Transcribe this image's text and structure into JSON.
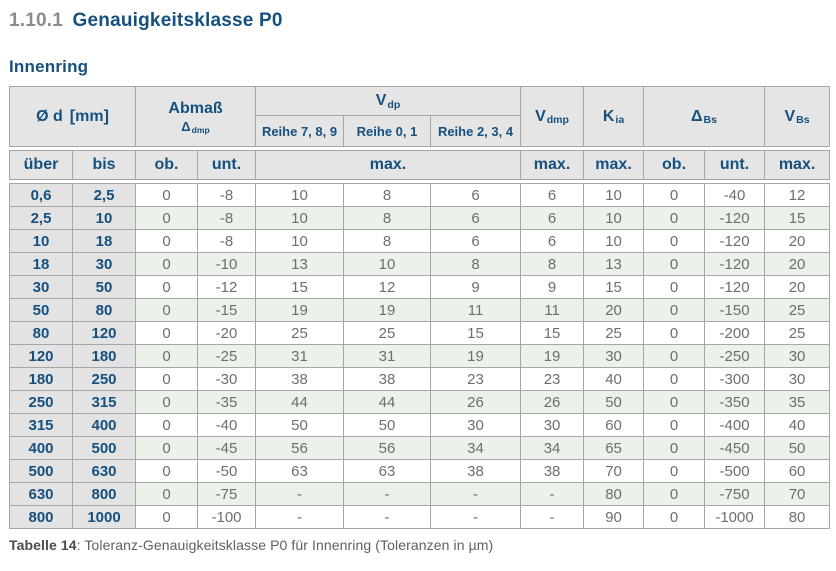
{
  "heading": {
    "number": "1.10.1",
    "title": "Genauigkeitsklasse P0"
  },
  "subheading": "Innenring",
  "caption": {
    "label": "Tabelle 14",
    "rest": ": Toleranz-Genauigkeitsklasse P0 für Innenring (Toleranzen in µm)"
  },
  "colors": {
    "accent_navy": "#15507e",
    "section_number_gray": "#8b8b8b",
    "header_bg": "#e5e5e5",
    "label_col_bg": "#e3e3e3",
    "row_green": "#eaf2e9",
    "row_white": "#ffffff",
    "border_gray": "#a6a6a6",
    "data_text_gray": "#6e6e6e",
    "caption_gray": "#5f5f5f"
  },
  "table": {
    "header": {
      "od": "Ø d",
      "od_unit": "[mm]",
      "abmass": "Abmaß",
      "abmass_delta": "Δ",
      "abmass_sub": "dmp",
      "vdp": "V",
      "vdp_sub": "dp",
      "reihe789": "Reihe 7, 8, 9",
      "reihe01": "Reihe 0, 1",
      "reihe234": "Reihe 2, 3, 4",
      "vdmp": "V",
      "vdmp_sub": "dmp",
      "kia": "K",
      "kia_sub": "ia",
      "dbs": "Δ",
      "dbs_sub": "Bs",
      "vbs": "V",
      "vbs_sub": "Bs",
      "ueber": "über",
      "bis": "bis",
      "ob": "ob.",
      "unt": "unt.",
      "max": "max."
    },
    "columns": [
      "ueber",
      "bis",
      "abmass-ob",
      "abmass-unt",
      "vdp-reihe789",
      "vdp-reihe01",
      "vdp-reihe234",
      "vdmp-max",
      "kia-max",
      "dbs-ob",
      "dbs-unt",
      "vbs-max"
    ],
    "rows": [
      [
        "0,6",
        "2,5",
        "0",
        "-8",
        "10",
        "8",
        "6",
        "6",
        "10",
        "0",
        "-40",
        "12"
      ],
      [
        "2,5",
        "10",
        "0",
        "-8",
        "10",
        "8",
        "6",
        "6",
        "10",
        "0",
        "-120",
        "15"
      ],
      [
        "10",
        "18",
        "0",
        "-8",
        "10",
        "8",
        "6",
        "6",
        "10",
        "0",
        "-120",
        "20"
      ],
      [
        "18",
        "30",
        "0",
        "-10",
        "13",
        "10",
        "8",
        "8",
        "13",
        "0",
        "-120",
        "20"
      ],
      [
        "30",
        "50",
        "0",
        "-12",
        "15",
        "12",
        "9",
        "9",
        "15",
        "0",
        "-120",
        "20"
      ],
      [
        "50",
        "80",
        "0",
        "-15",
        "19",
        "19",
        "11",
        "11",
        "20",
        "0",
        "-150",
        "25"
      ],
      [
        "80",
        "120",
        "0",
        "-20",
        "25",
        "25",
        "15",
        "15",
        "25",
        "0",
        "-200",
        "25"
      ],
      [
        "120",
        "180",
        "0",
        "-25",
        "31",
        "31",
        "19",
        "19",
        "30",
        "0",
        "-250",
        "30"
      ],
      [
        "180",
        "250",
        "0",
        "-30",
        "38",
        "38",
        "23",
        "23",
        "40",
        "0",
        "-300",
        "30"
      ],
      [
        "250",
        "315",
        "0",
        "-35",
        "44",
        "44",
        "26",
        "26",
        "50",
        "0",
        "-350",
        "35"
      ],
      [
        "315",
        "400",
        "0",
        "-40",
        "50",
        "50",
        "30",
        "30",
        "60",
        "0",
        "-400",
        "40"
      ],
      [
        "400",
        "500",
        "0",
        "-45",
        "56",
        "56",
        "34",
        "34",
        "65",
        "0",
        "-450",
        "50"
      ],
      [
        "500",
        "630",
        "0",
        "-50",
        "63",
        "63",
        "38",
        "38",
        "70",
        "0",
        "-500",
        "60"
      ],
      [
        "630",
        "800",
        "0",
        "-75",
        "-",
        "-",
        "-",
        "-",
        "80",
        "0",
        "-750",
        "70"
      ],
      [
        "800",
        "1000",
        "0",
        "-100",
        "-",
        "-",
        "-",
        "-",
        "90",
        "0",
        "-1000",
        "80"
      ]
    ]
  }
}
